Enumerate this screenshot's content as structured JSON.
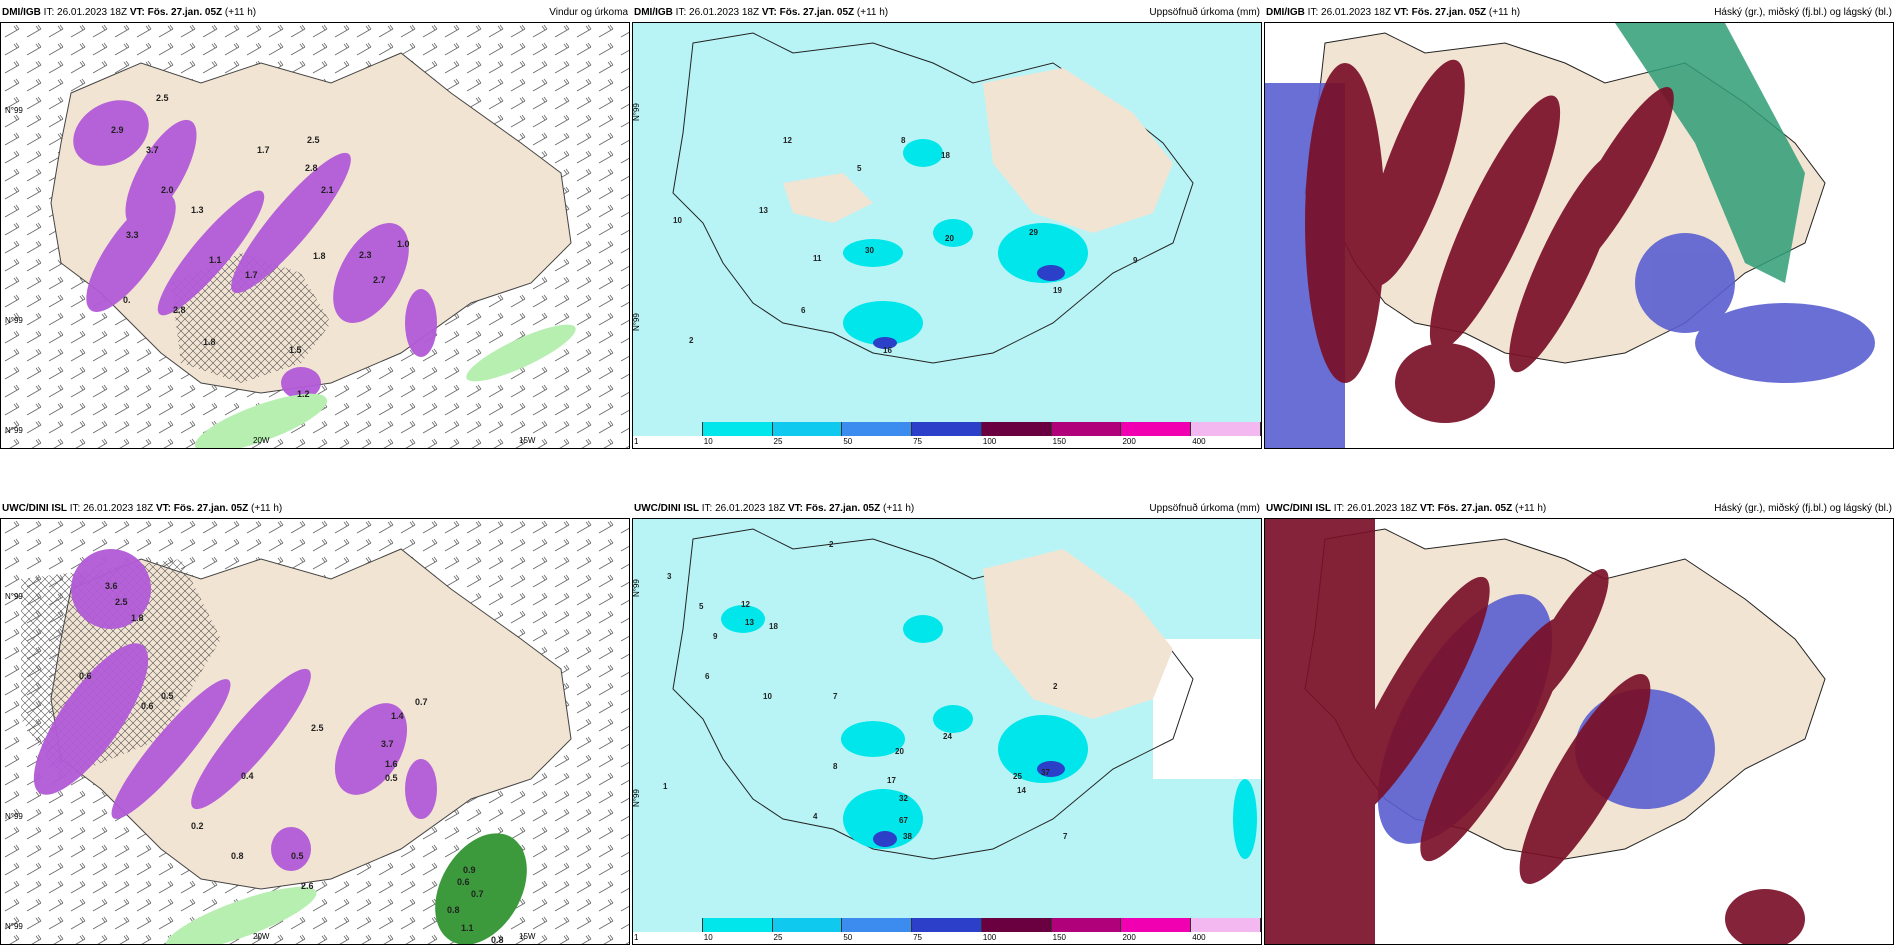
{
  "panels": [
    {
      "id": "p1",
      "model": "DMI/IGB",
      "it_label": "IT:",
      "it": "26.01.2023 18Z",
      "vt_label": "VT: Fös. 27.jan. 05Z",
      "lead": "(+11 h)",
      "title": "Vindur og úrkoma",
      "axis_labels": [
        "N°99",
        "N°99",
        "N°99",
        "20W",
        "15W"
      ],
      "values": [
        "2.9",
        "3.7",
        "2.5",
        "2.0",
        "3.3",
        "1.3",
        "0.",
        "2.8",
        "1.8",
        "2.3",
        "2.7",
        "1.5",
        "1.2",
        "1.7",
        "2.8",
        "2.1",
        "1.7",
        "1.8",
        "1.0",
        "2.5",
        "1.1"
      ]
    },
    {
      "id": "p2",
      "model": "DMI/IGB",
      "it_label": "IT:",
      "it": "26.01.2023 18Z",
      "vt_label": "VT: Fös. 27.jan. 05Z",
      "lead": "(+11 h)",
      "title": "Uppsöfnuð úrkoma (mm)",
      "axis_labels": [
        "N°99",
        "N°99"
      ],
      "values": [
        "12",
        "8",
        "18",
        "5",
        "13",
        "10",
        "11",
        "30",
        "29",
        "20",
        "6",
        "2",
        "9",
        "19",
        "16"
      ]
    },
    {
      "id": "p3",
      "model": "DMI/IGB",
      "it_label": "IT:",
      "it": "26.01.2023 18Z",
      "vt_label": "VT: Fös. 27.jan. 05Z",
      "lead": "(+11 h)",
      "title": "Háský (gr.), miðský (fj.bl.) og lágský (bl.)"
    },
    {
      "id": "p4",
      "model": "UWC/DINI ISL",
      "it_label": "IT:",
      "it": "26.01.2023 18Z",
      "vt_label": "VT: Fös. 27.jan. 05Z",
      "lead": "(+11 h)",
      "title": "",
      "axis_labels": [
        "N°99",
        "N°99",
        "N°99",
        "20W",
        "15W"
      ],
      "values": [
        "3.6",
        "2.5",
        "1.8",
        "0.6",
        "0.5",
        "0.6",
        "2.5",
        "3.7",
        "1.6",
        "0.5",
        "0.4",
        "0.2",
        "2.6",
        "0.5",
        "0.9",
        "0.6",
        "0.7",
        "0.8",
        "1.1",
        "0.8",
        "1.4",
        "0.7",
        "0.8"
      ]
    },
    {
      "id": "p5",
      "model": "UWC/DINI ISL",
      "it_label": "IT:",
      "it": "26.01.2023 18Z",
      "vt_label": "VT: Fös. 27.jan. 05Z",
      "lead": "(+11 h)",
      "title": "Uppsöfnuð úrkoma (mm)",
      "axis_labels": [
        "N°99",
        "N°99"
      ],
      "values": [
        "3",
        "2",
        "5",
        "9",
        "12",
        "13",
        "18",
        "10",
        "7",
        "6",
        "24",
        "37",
        "25",
        "14",
        "32",
        "67",
        "38",
        "17",
        "20",
        "1",
        "7",
        "4",
        "2",
        "8"
      ]
    },
    {
      "id": "p6",
      "model": "UWC/DINI ISL",
      "it_label": "IT:",
      "it": "26.01.2023 18Z",
      "vt_label": "VT: Fös. 27.jan. 05Z",
      "lead": "(+11 h)",
      "title": "Háský (gr.), miðský (fj.bl.) og lágský (bl.)"
    }
  ],
  "colorbar": {
    "ticks": [
      "1",
      "10",
      "25",
      "50",
      "75",
      "100",
      "150",
      "200",
      "400"
    ],
    "colors": [
      "#b8f4f6",
      "#00e6ea",
      "#0fc9ee",
      "#3c8cf0",
      "#2b3fc9",
      "#6b0040",
      "#b0007a",
      "#f000b0",
      "#f4b8f0"
    ]
  },
  "colors": {
    "land": "#f2e4d2",
    "precip": "#b25ad8",
    "light_rain": "#b6efb0",
    "cloud_high": "#7a1028",
    "cloud_mid": "#5a5fd0",
    "cloud_low": "#2f9e77"
  }
}
